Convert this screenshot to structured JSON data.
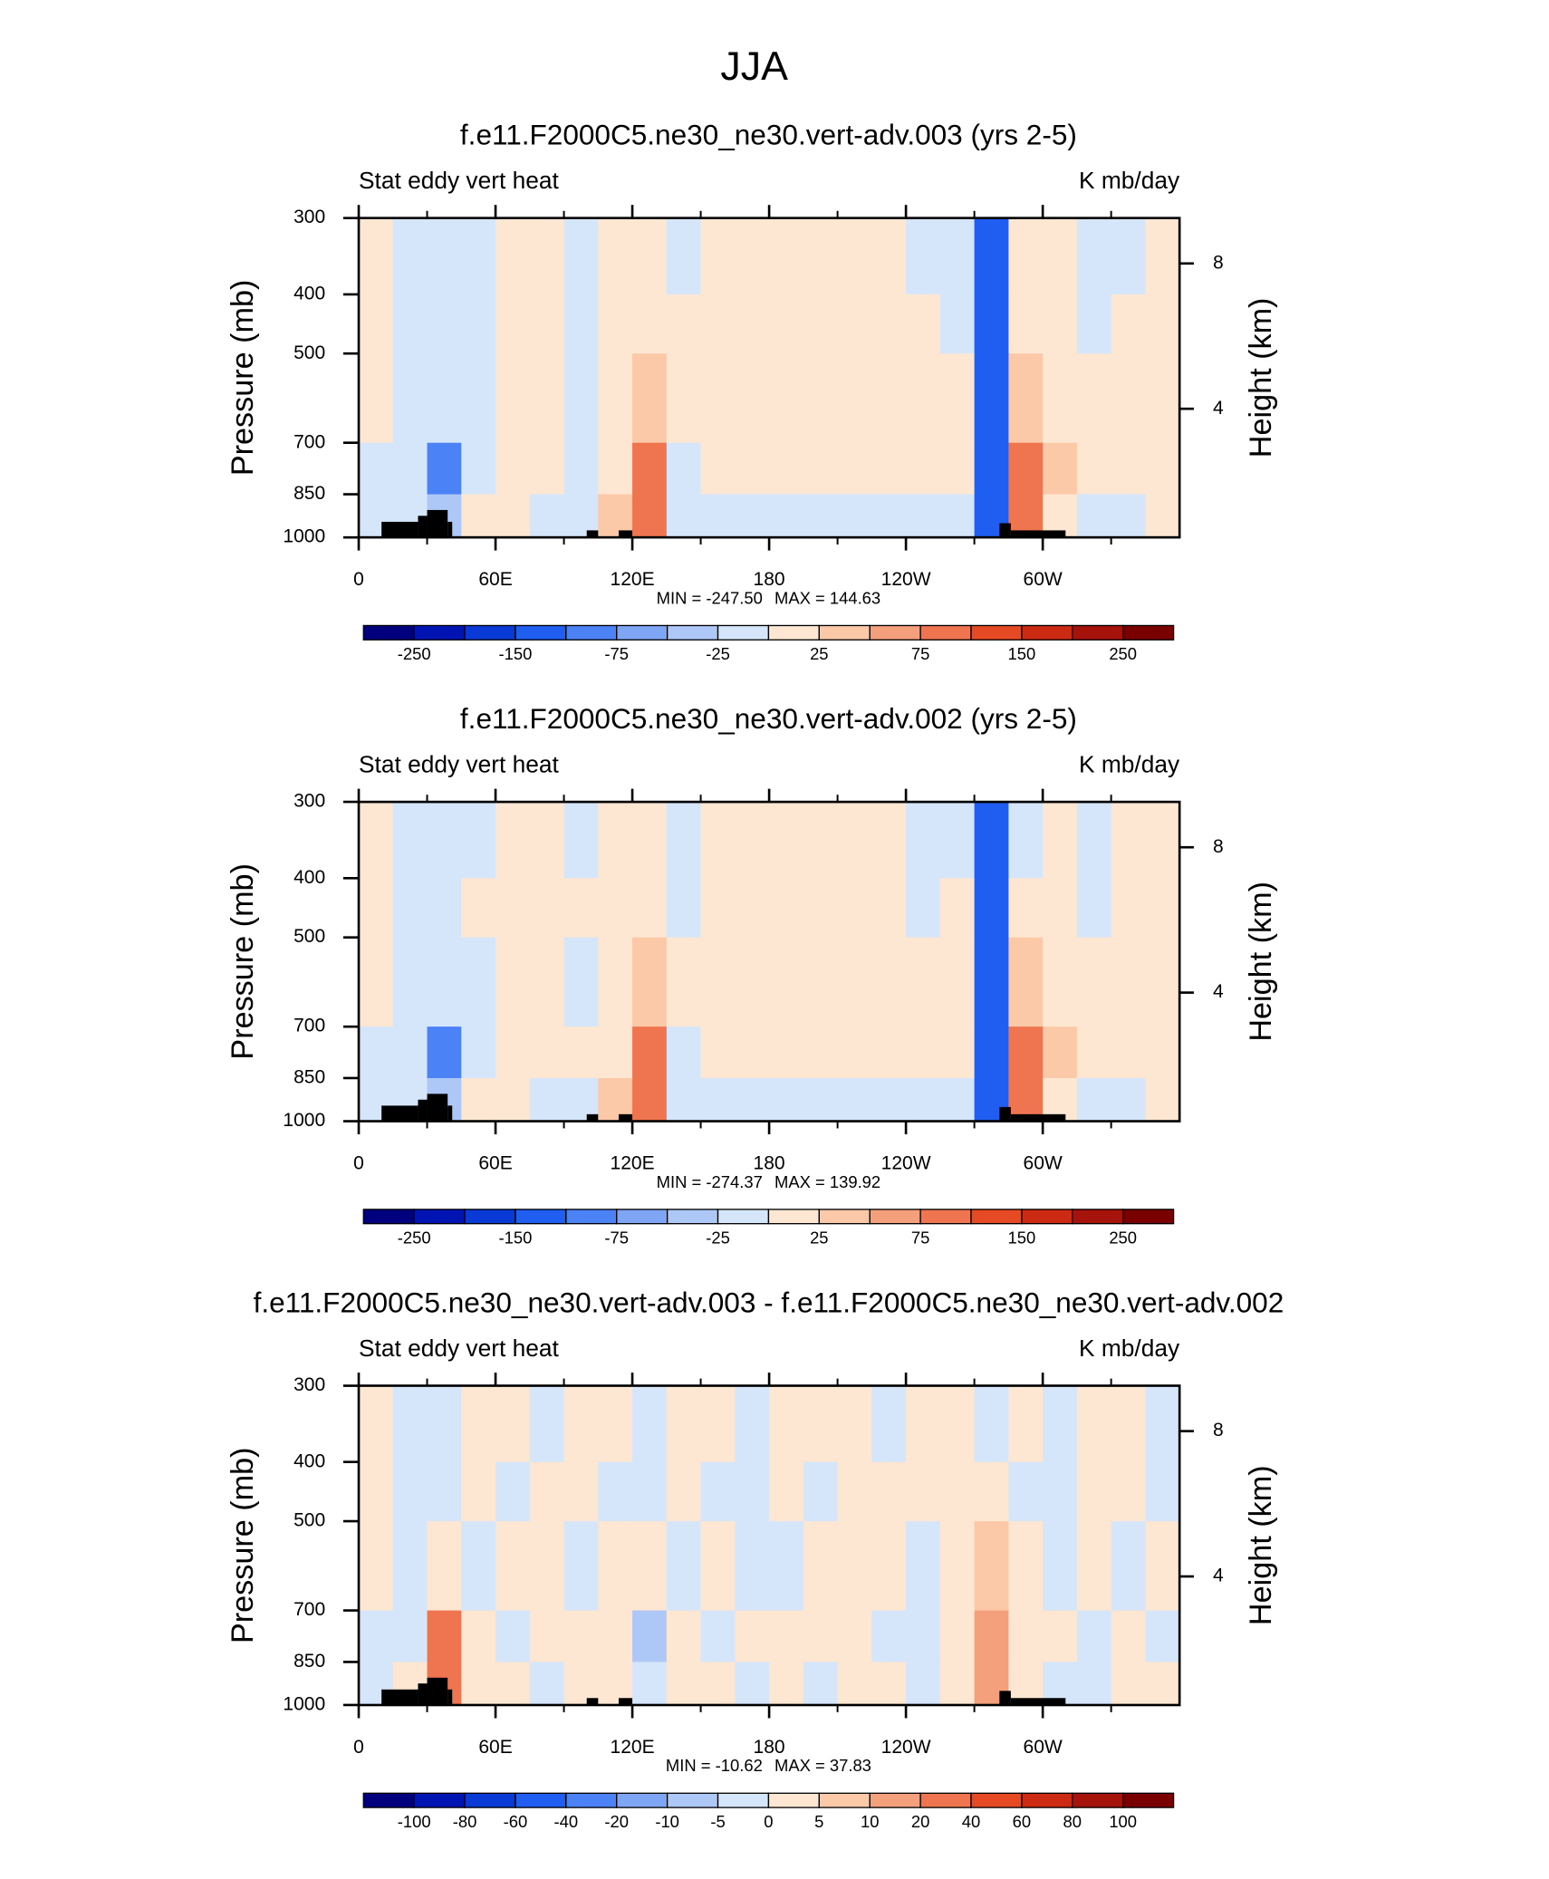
{
  "title": "JJA",
  "chart_data": [
    {
      "type": "contour",
      "title": "f.e11.F2000C5.ne30_ne30.vert-adv.003 (yrs 2-5)",
      "left_label": "Stat eddy vert heat",
      "right_label": "K mb/day",
      "ylabel": "Pressure (mb)",
      "y2label": "Height (km)",
      "xlim": [
        0,
        360
      ],
      "xticks": [
        0,
        {
          "value": 60,
          "label": "60E"
        },
        {
          "value": 120,
          "label": "120E"
        },
        180,
        {
          "value": 240,
          "label": "120W"
        },
        {
          "value": 300,
          "label": "60W"
        }
      ],
      "xminor_ticks": [
        30,
        90,
        150,
        210,
        270,
        330
      ],
      "ylim": [
        1000,
        300
      ],
      "ylog": true,
      "yticks": [
        300,
        400,
        500,
        700,
        850,
        1000
      ],
      "y2lim": [
        0.46,
        9.25
      ],
      "y2ticks": [
        4,
        8
      ],
      "x": [
        0,
        15,
        30,
        45,
        60,
        75,
        90,
        105,
        120,
        135,
        150,
        165,
        180,
        195,
        210,
        225,
        240,
        255,
        270,
        285,
        300,
        315,
        330,
        345,
        360
      ],
      "y": [
        300,
        400,
        500,
        700,
        850,
        1000
      ],
      "values": [
        [
          10,
          -10,
          -10,
          -10,
          10,
          10,
          -10,
          10,
          10,
          -10,
          10,
          10,
          10,
          10,
          10,
          10,
          -10,
          -10,
          -150,
          10,
          10,
          -10,
          -10,
          10
        ],
        [
          10,
          -10,
          -10,
          -10,
          10,
          10,
          -10,
          10,
          10,
          10,
          10,
          10,
          10,
          10,
          10,
          10,
          10,
          -10,
          -150,
          10,
          10,
          -10,
          10,
          10
        ],
        [
          10,
          -10,
          -10,
          -10,
          10,
          10,
          -10,
          10,
          30,
          10,
          10,
          10,
          10,
          10,
          10,
          10,
          10,
          10,
          -150,
          30,
          10,
          10,
          10,
          10
        ],
        [
          -10,
          -10,
          -100,
          -10,
          10,
          10,
          -10,
          10,
          75,
          -10,
          10,
          10,
          10,
          10,
          10,
          10,
          10,
          10,
          -150,
          75,
          30,
          10,
          10,
          10
        ],
        [
          -10,
          -10,
          -40,
          10,
          10,
          -10,
          -10,
          30,
          75,
          -10,
          -10,
          -10,
          -10,
          -10,
          -10,
          -10,
          -10,
          -10,
          -150,
          75,
          10,
          -10,
          -10,
          10
        ]
      ],
      "terrain": {
        "x0": [
          10,
          26,
          30,
          39,
          100,
          114,
          281,
          286
        ],
        "x1": [
          26,
          30,
          39,
          41,
          105,
          120,
          286,
          310
        ],
        "values": [
          943,
          922,
          902,
          943,
          974,
          974,
          948,
          974
        ]
      },
      "min": {
        "value": -247.5,
        "label": "MIN = -247.50"
      },
      "max": {
        "value": 144.63,
        "label": "MAX = 144.63"
      },
      "levels": [
        -250,
        -200,
        -150,
        -100,
        -75,
        -50,
        -25,
        0,
        25,
        50,
        75,
        100,
        150,
        200,
        250
      ],
      "colorbar_ticks": [
        -250,
        -150,
        -75,
        -25,
        25,
        75,
        150,
        250
      ],
      "colors": [
        "#00007f",
        "#0014b4",
        "#0a3ad6",
        "#1f5ef0",
        "#4b82f5",
        "#7ea6f5",
        "#adc8f7",
        "#d5e6fb",
        "#fde6d2",
        "#fbc9a8",
        "#f5a07c",
        "#ef7450",
        "#e64a24",
        "#cc2a12",
        "#a5130a",
        "#7a0000"
      ]
    },
    {
      "type": "contour",
      "title": "f.e11.F2000C5.ne30_ne30.vert-adv.002 (yrs 2-5)",
      "left_label": "Stat eddy vert heat",
      "right_label": "K mb/day",
      "ylabel": "Pressure (mb)",
      "y2label": "Height (km)",
      "xlim": [
        0,
        360
      ],
      "xticks": [
        0,
        {
          "value": 60,
          "label": "60E"
        },
        {
          "value": 120,
          "label": "120E"
        },
        180,
        {
          "value": 240,
          "label": "120W"
        },
        {
          "value": 300,
          "label": "60W"
        }
      ],
      "xminor_ticks": [
        30,
        90,
        150,
        210,
        270,
        330
      ],
      "ylim": [
        1000,
        300
      ],
      "ylog": true,
      "yticks": [
        300,
        400,
        500,
        700,
        850,
        1000
      ],
      "y2lim": [
        0.46,
        9.25
      ],
      "y2ticks": [
        4,
        8
      ],
      "x": [
        0,
        15,
        30,
        45,
        60,
        75,
        90,
        105,
        120,
        135,
        150,
        165,
        180,
        195,
        210,
        225,
        240,
        255,
        270,
        285,
        300,
        315,
        330,
        345,
        360
      ],
      "y": [
        300,
        400,
        500,
        700,
        850,
        1000
      ],
      "values": [
        [
          10,
          -10,
          -10,
          -10,
          10,
          10,
          -10,
          10,
          10,
          -10,
          10,
          10,
          10,
          10,
          10,
          10,
          -10,
          -10,
          -150,
          -10,
          10,
          -10,
          10,
          10
        ],
        [
          10,
          -10,
          -10,
          10,
          10,
          10,
          10,
          10,
          10,
          -10,
          10,
          10,
          10,
          10,
          10,
          10,
          -10,
          10,
          -150,
          10,
          10,
          -10,
          10,
          10
        ],
        [
          10,
          -10,
          -10,
          -10,
          10,
          10,
          -10,
          10,
          30,
          10,
          10,
          10,
          10,
          10,
          10,
          10,
          10,
          10,
          -150,
          30,
          10,
          10,
          10,
          10
        ],
        [
          -10,
          -10,
          -100,
          -10,
          10,
          10,
          10,
          10,
          75,
          -10,
          10,
          10,
          10,
          10,
          10,
          10,
          10,
          10,
          -150,
          75,
          30,
          10,
          10,
          10
        ],
        [
          -10,
          -10,
          -40,
          10,
          10,
          -10,
          -10,
          30,
          75,
          -10,
          -10,
          -10,
          -10,
          -10,
          -10,
          -10,
          -10,
          -10,
          -150,
          75,
          10,
          -10,
          -10,
          10
        ]
      ],
      "terrain": {
        "x0": [
          10,
          26,
          30,
          39,
          100,
          114,
          281,
          286
        ],
        "x1": [
          26,
          30,
          39,
          41,
          105,
          120,
          286,
          310
        ],
        "values": [
          943,
          922,
          902,
          943,
          974,
          974,
          948,
          974
        ]
      },
      "min": {
        "value": -274.37,
        "label": "MIN = -274.37"
      },
      "max": {
        "value": 139.92,
        "label": "MAX = 139.92"
      },
      "levels": [
        -250,
        -200,
        -150,
        -100,
        -75,
        -50,
        -25,
        0,
        25,
        50,
        75,
        100,
        150,
        200,
        250
      ],
      "colorbar_ticks": [
        -250,
        -150,
        -75,
        -25,
        25,
        75,
        150,
        250
      ],
      "colors": [
        "#00007f",
        "#0014b4",
        "#0a3ad6",
        "#1f5ef0",
        "#4b82f5",
        "#7ea6f5",
        "#adc8f7",
        "#d5e6fb",
        "#fde6d2",
        "#fbc9a8",
        "#f5a07c",
        "#ef7450",
        "#e64a24",
        "#cc2a12",
        "#a5130a",
        "#7a0000"
      ]
    },
    {
      "type": "contour",
      "title": "f.e11.F2000C5.ne30_ne30.vert-adv.003 - f.e11.F2000C5.ne30_ne30.vert-adv.002",
      "left_label": "Stat eddy vert heat",
      "right_label": "K mb/day",
      "ylabel": "Pressure (mb)",
      "y2label": "Height (km)",
      "xlim": [
        0,
        360
      ],
      "xticks": [
        0,
        {
          "value": 60,
          "label": "60E"
        },
        {
          "value": 120,
          "label": "120E"
        },
        180,
        {
          "value": 240,
          "label": "120W"
        },
        {
          "value": 300,
          "label": "60W"
        }
      ],
      "xminor_ticks": [
        30,
        90,
        150,
        210,
        270,
        330
      ],
      "ylim": [
        1000,
        300
      ],
      "ylog": true,
      "yticks": [
        300,
        400,
        500,
        700,
        850,
        1000
      ],
      "y2lim": [
        0.46,
        9.25
      ],
      "y2ticks": [
        4,
        8
      ],
      "x": [
        0,
        15,
        30,
        45,
        60,
        75,
        90,
        105,
        120,
        135,
        150,
        165,
        180,
        195,
        210,
        225,
        240,
        255,
        270,
        285,
        300,
        315,
        330,
        345,
        360
      ],
      "y": [
        300,
        400,
        500,
        700,
        850,
        1000
      ],
      "values": [
        [
          2,
          -2,
          -2,
          2,
          2,
          -2,
          2,
          2,
          -2,
          2,
          2,
          -2,
          2,
          2,
          2,
          -2,
          2,
          2,
          -2,
          2,
          -2,
          2,
          2,
          -2
        ],
        [
          2,
          -2,
          -2,
          2,
          -2,
          2,
          2,
          -2,
          -2,
          2,
          -2,
          -2,
          2,
          -2,
          2,
          2,
          2,
          2,
          2,
          -2,
          -2,
          2,
          2,
          -2
        ],
        [
          2,
          -2,
          2,
          -2,
          2,
          2,
          -2,
          2,
          2,
          -2,
          2,
          -2,
          -2,
          2,
          2,
          2,
          -2,
          2,
          7,
          2,
          -2,
          2,
          -2,
          2
        ],
        [
          -2,
          -2,
          30,
          2,
          -2,
          2,
          2,
          2,
          -7,
          2,
          -2,
          2,
          2,
          2,
          2,
          -2,
          -2,
          2,
          15,
          2,
          2,
          -2,
          2,
          -2
        ],
        [
          -2,
          2,
          30,
          2,
          2,
          -2,
          2,
          2,
          -2,
          2,
          2,
          -2,
          2,
          -2,
          2,
          2,
          -2,
          2,
          15,
          2,
          -2,
          -2,
          2,
          2
        ]
      ],
      "terrain": {
        "x0": [
          10,
          26,
          30,
          39,
          100,
          114,
          281,
          286
        ],
        "x1": [
          26,
          30,
          39,
          41,
          105,
          120,
          286,
          310
        ],
        "values": [
          943,
          922,
          902,
          943,
          974,
          974,
          948,
          974
        ]
      },
      "min": {
        "value": -10.62,
        "label": "MIN = -10.62"
      },
      "max": {
        "value": 37.83,
        "label": "MAX =  37.83"
      },
      "levels": [
        -100,
        -80,
        -60,
        -40,
        -20,
        -10,
        -5,
        0,
        5,
        10,
        20,
        40,
        60,
        80,
        100
      ],
      "colorbar_ticks": [
        -100,
        -80,
        -60,
        -40,
        -20,
        -10,
        -5,
        0,
        5,
        10,
        20,
        40,
        60,
        80,
        100
      ],
      "colors": [
        "#00007f",
        "#0014b4",
        "#0a3ad6",
        "#1f5ef0",
        "#4b82f5",
        "#7ea6f5",
        "#adc8f7",
        "#d5e6fb",
        "#fde6d2",
        "#fbc9a8",
        "#f5a07c",
        "#ef7450",
        "#e64a24",
        "#cc2a12",
        "#a5130a",
        "#7a0000"
      ]
    }
  ]
}
